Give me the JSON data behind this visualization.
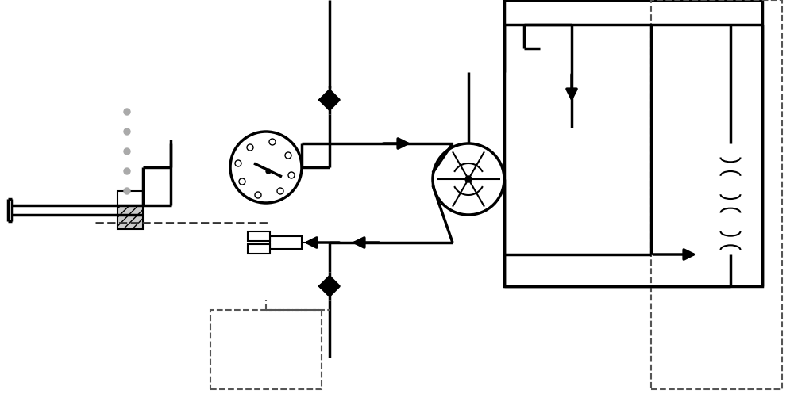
{
  "bg_color": "#ffffff",
  "line_color": "#000000",
  "dot_color": "#aaaaaa",
  "lw": 2.5,
  "lw_thin": 1.5,
  "fig_width": 10.0,
  "fig_height": 5.21
}
